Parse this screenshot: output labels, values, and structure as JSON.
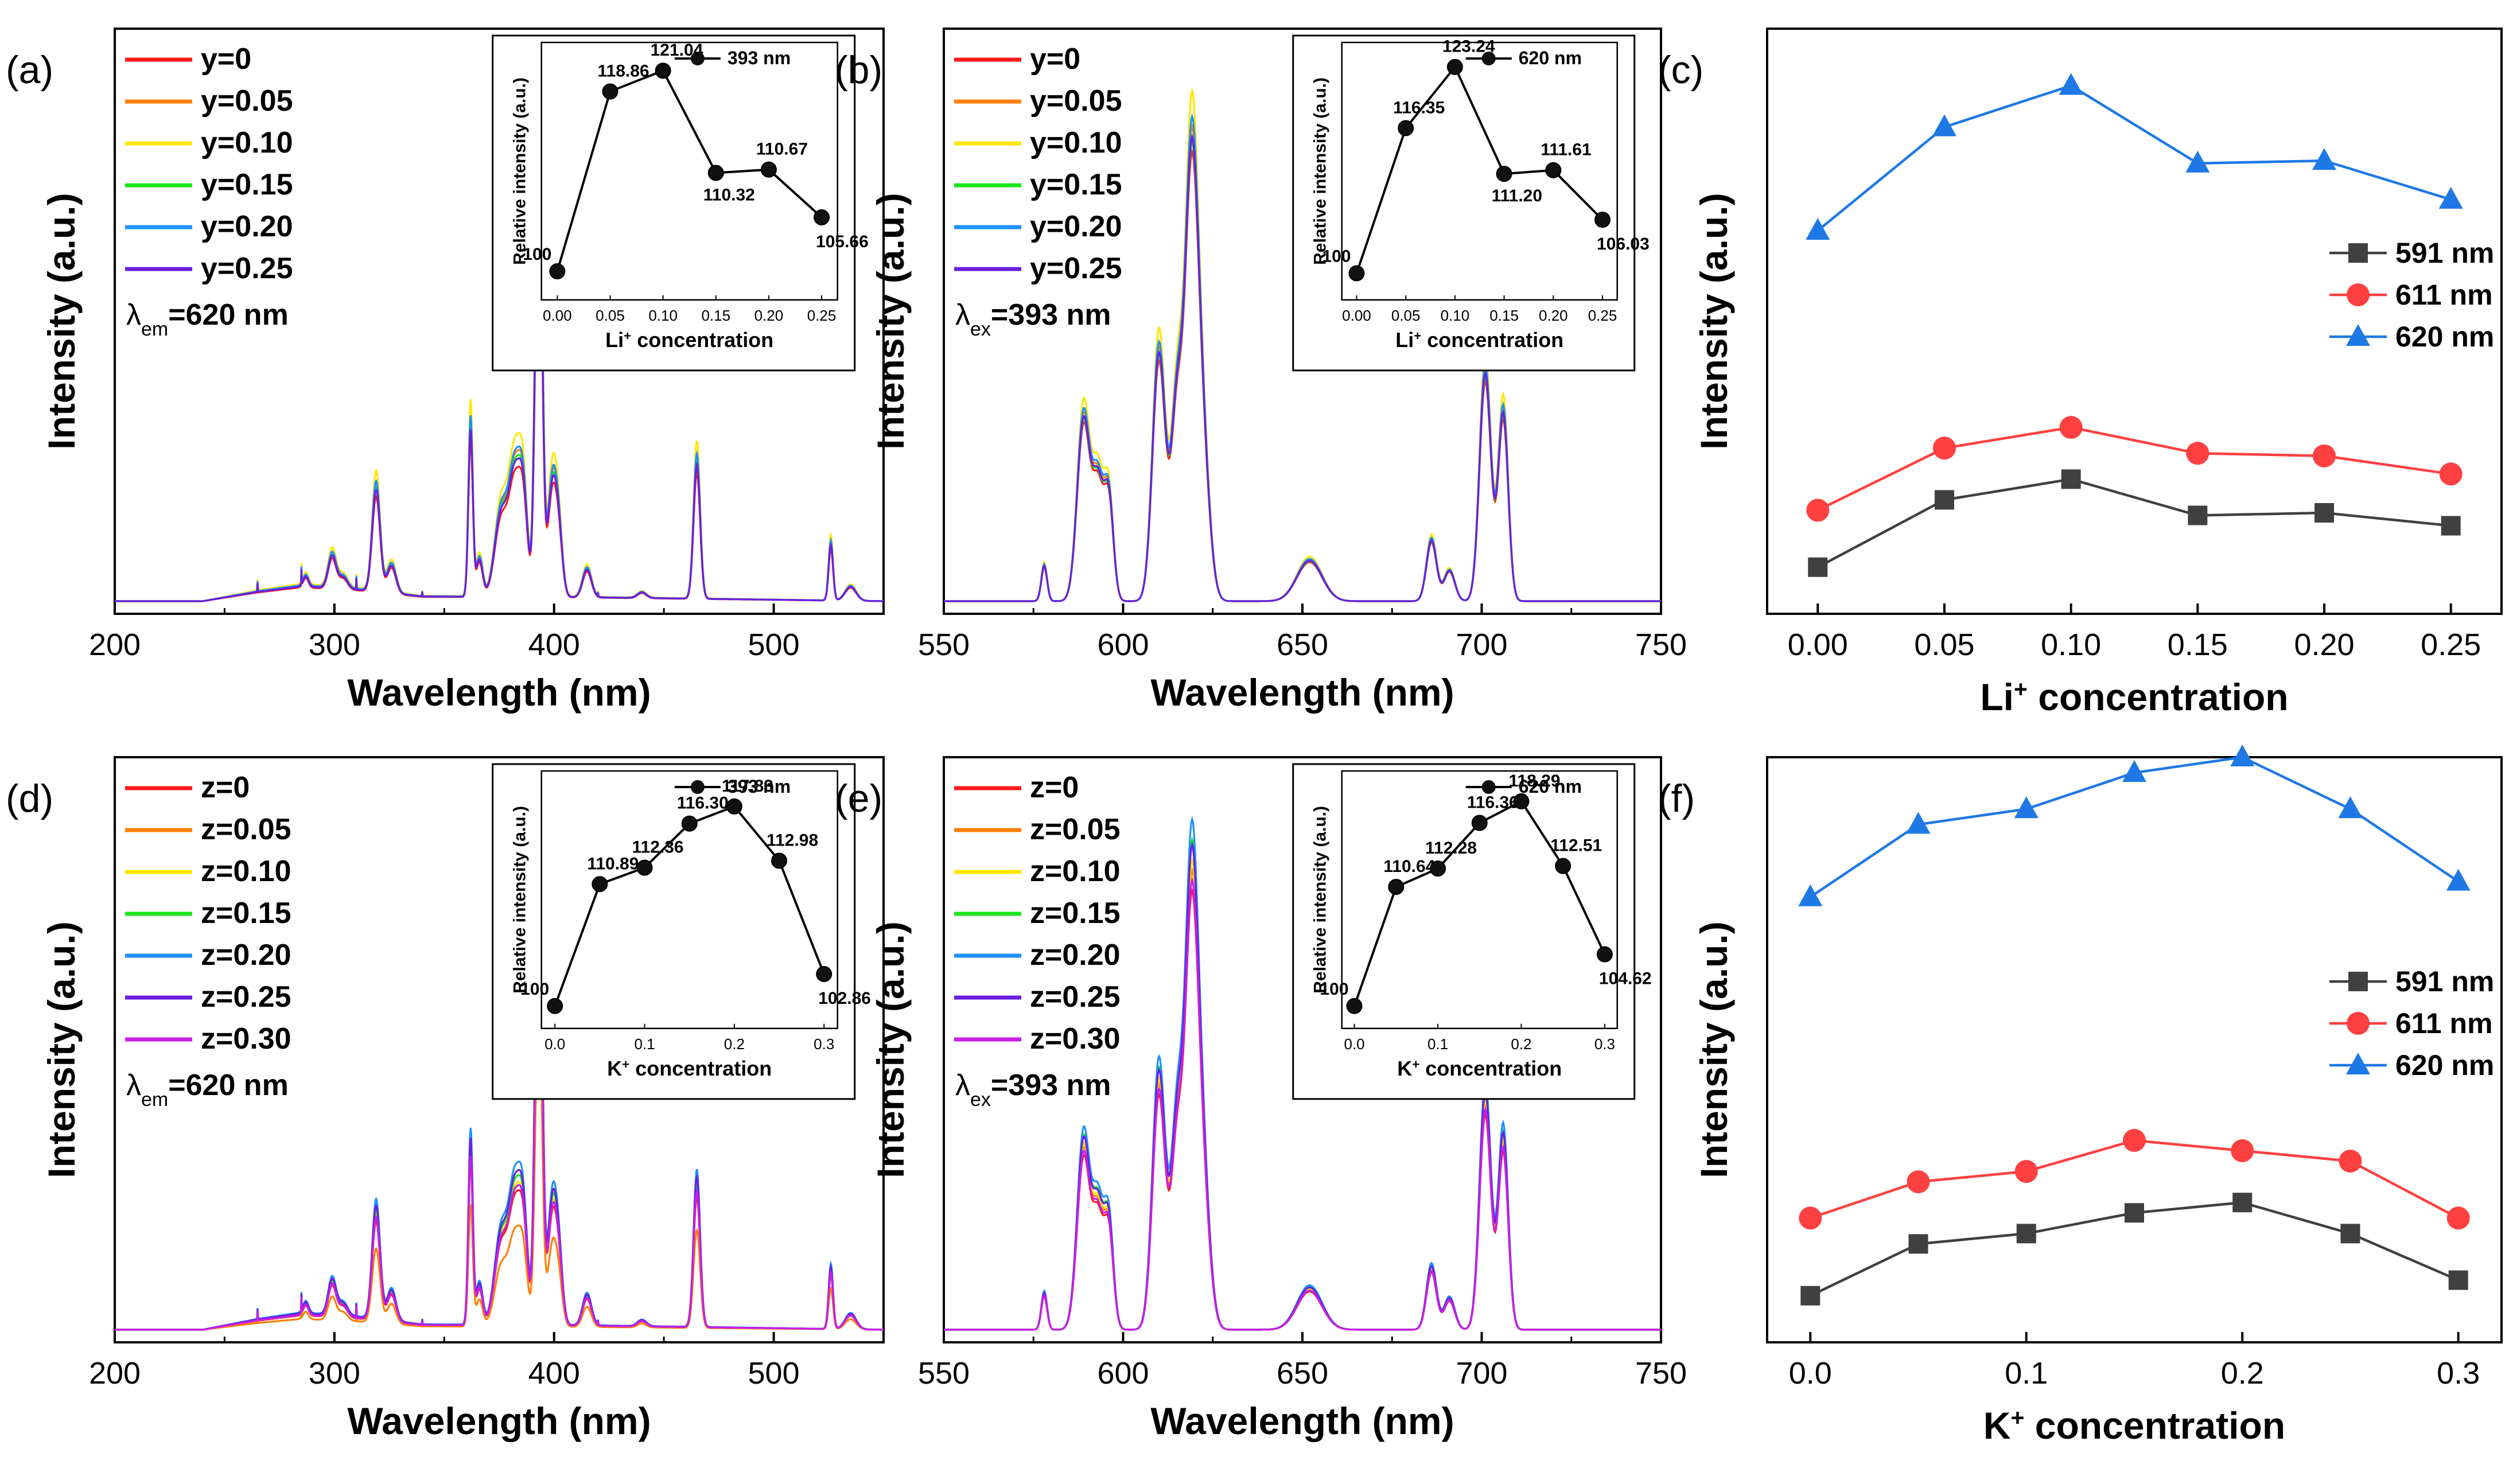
{
  "colors": {
    "y0": "#ff1a1a",
    "y05": "#ff7f00",
    "y10": "#ffe600",
    "y15": "#19e619",
    "y20": "#1e90ff",
    "y25": "#6a1fe0",
    "y30": "#c81ee6",
    "g591": "#404040",
    "g611": "#ff4040",
    "g620": "#1e78e6",
    "ink": "#000000"
  },
  "chart_data": [
    {
      "id": "a",
      "panel_label": "(a)",
      "type": "line",
      "title": "",
      "xlabel": "Wavelength (nm)",
      "ylabel": "Intensity (a.u.)",
      "xlim": [
        200,
        550
      ],
      "xticks": [
        200,
        300,
        400,
        500
      ],
      "annotation": {
        "symbol": "λ",
        "sub": "em",
        "text": "=620 nm"
      },
      "series": [
        {
          "name": "y=0",
          "color_key": "y0",
          "scale": 0.8
        },
        {
          "name": "y=0.05",
          "color_key": "y05",
          "scale": 0.9
        },
        {
          "name": "y=0.10",
          "color_key": "y10",
          "scale": 1.0
        },
        {
          "name": "y=0.15",
          "color_key": "y15",
          "scale": 0.87
        },
        {
          "name": "y=0.20",
          "color_key": "y20",
          "scale": 0.92
        },
        {
          "name": "y=0.25",
          "color_key": "y25",
          "scale": 0.85
        }
      ],
      "peaks": [
        [
          287,
          0.022,
          1.2
        ],
        [
          299,
          0.07,
          1.8
        ],
        [
          304,
          0.025,
          2
        ],
        [
          319,
          0.22,
          1.8
        ],
        [
          326,
          0.06,
          2
        ],
        [
          362,
          0.36,
          1.0
        ],
        [
          366,
          0.08,
          1.5
        ],
        [
          376,
          0.18,
          3
        ],
        [
          382,
          0.24,
          2.5
        ],
        [
          386,
          0.2,
          2
        ],
        [
          393,
          1.0,
          1.5
        ],
        [
          399,
          0.22,
          2
        ],
        [
          402,
          0.13,
          1.8
        ],
        [
          415,
          0.06,
          2
        ],
        [
          440,
          0.012,
          2
        ],
        [
          465,
          0.29,
          1.5
        ],
        [
          526,
          0.12,
          1.0
        ],
        [
          535,
          0.03,
          2.5
        ]
      ],
      "baseline": [
        [
          240,
          0
        ],
        [
          265,
          0.02
        ],
        [
          285,
          0.032
        ],
        [
          310,
          0.025
        ],
        [
          340,
          0.01
        ],
        [
          420,
          0.008
        ],
        [
          550,
          0
        ]
      ],
      "ymax_frac": 0.95,
      "inset": {
        "type": "line",
        "xlabel_prefix": "Li",
        "xlabel_suffix": " concentration",
        "ylabel": "Relative intensity (a.u.)",
        "legend": "393 nm",
        "x": [
          0,
          0.05,
          0.1,
          0.15,
          0.2,
          0.25
        ],
        "y": [
          100,
          118.86,
          121.04,
          110.32,
          110.67,
          105.66
        ],
        "labels": [
          "100",
          "118.86",
          "121.04",
          "110.32",
          "110.67",
          "105.66"
        ],
        "xlim": [
          -0.015,
          0.265
        ],
        "ylim": [
          97,
          124
        ],
        "xticks": [
          "0.00",
          "0.05",
          "0.10",
          "0.15",
          "0.20",
          "0.25"
        ]
      }
    },
    {
      "id": "b",
      "panel_label": "(b)",
      "type": "line",
      "title": "",
      "xlabel": "Wavelength (nm)",
      "ylabel": "Intensity (a.u.)",
      "xlim": [
        550,
        750
      ],
      "xticks": [
        550,
        600,
        650,
        700,
        750
      ],
      "annotation": {
        "symbol": "λ",
        "sub": "ex",
        "text": "=393 nm"
      },
      "series": [
        {
          "name": "y=0",
          "color_key": "y0",
          "scale": 0.88
        },
        {
          "name": "y=0.05",
          "color_key": "y05",
          "scale": 0.93
        },
        {
          "name": "y=0.10",
          "color_key": "y10",
          "scale": 1.0
        },
        {
          "name": "y=0.15",
          "color_key": "y15",
          "scale": 0.9
        },
        {
          "name": "y=0.20",
          "color_key": "y20",
          "scale": 0.95
        },
        {
          "name": "y=0.25",
          "color_key": "y25",
          "scale": 0.91
        }
      ],
      "peaks": [
        [
          578,
          0.07,
          0.8
        ],
        [
          589,
          0.36,
          1.8
        ],
        [
          593,
          0.22,
          1.5
        ],
        [
          596,
          0.2,
          1.3
        ],
        [
          610,
          0.49,
          1.8
        ],
        [
          615,
          0.37,
          1.6
        ],
        [
          619,
          0.8,
          1.8
        ],
        [
          622,
          0.3,
          2
        ],
        [
          652,
          0.08,
          3.5
        ],
        [
          686,
          0.12,
          1.4
        ],
        [
          691,
          0.06,
          1.5
        ],
        [
          701,
          0.45,
          1.6
        ],
        [
          706,
          0.37,
          1.4
        ]
      ],
      "baseline": [
        [
          550,
          0
        ],
        [
          750,
          0
        ]
      ],
      "ymax_frac": 0.97,
      "inset": {
        "type": "line",
        "xlabel_prefix": "Li",
        "xlabel_suffix": " concentration",
        "ylabel": "Relative intensity (a.u.)",
        "legend": "620 nm",
        "x": [
          0,
          0.05,
          0.1,
          0.15,
          0.2,
          0.25
        ],
        "y": [
          100,
          116.35,
          123.24,
          111.2,
          111.61,
          106.03
        ],
        "labels": [
          "100",
          "116.35",
          "123.24",
          "111.20",
          "111.61",
          "106.03"
        ],
        "xlim": [
          -0.015,
          0.265
        ],
        "ylim": [
          97,
          126
        ],
        "xticks": [
          "0.00",
          "0.05",
          "0.10",
          "0.15",
          "0.20",
          "0.25"
        ]
      }
    },
    {
      "id": "c",
      "panel_label": "(c)",
      "type": "line",
      "title": "",
      "xlabel_prefix": "Li",
      "xlabel_suffix": " concentration",
      "ylabel": "Intensity (a.u.)",
      "xlim": [
        -0.02,
        0.27
      ],
      "ylim": [
        0,
        1.05
      ],
      "xticks": [
        "0.00",
        "0.05",
        "0.10",
        "0.15",
        "0.20",
        "0.25"
      ],
      "x": [
        0,
        0.05,
        0.1,
        0.15,
        0.2,
        0.25
      ],
      "series": [
        {
          "name": "591 nm",
          "marker": "square",
          "color_key": "g591",
          "values": [
            0.09,
            0.22,
            0.26,
            0.19,
            0.195,
            0.17
          ]
        },
        {
          "name": "611 nm",
          "marker": "circle",
          "color_key": "g611",
          "values": [
            0.2,
            0.32,
            0.36,
            0.31,
            0.305,
            0.27
          ]
        },
        {
          "name": "620 nm",
          "marker": "triangle",
          "color_key": "g620",
          "values": [
            0.74,
            0.94,
            1.02,
            0.87,
            0.875,
            0.8
          ]
        }
      ],
      "legend_position": "middle-right"
    },
    {
      "id": "d",
      "panel_label": "(d)",
      "type": "line",
      "title": "",
      "xlabel": "Wavelength (nm)",
      "ylabel": "Intensity (a.u.)",
      "xlim": [
        200,
        550
      ],
      "xticks": [
        200,
        300,
        400,
        500
      ],
      "annotation": {
        "symbol": "λ",
        "sub": "em",
        "text": "=620 nm"
      },
      "series": [
        {
          "name": "z=0",
          "color_key": "y0",
          "scale": 0.83
        },
        {
          "name": "z=0.05",
          "color_key": "y05",
          "scale": 0.62
        },
        {
          "name": "z=0.10",
          "color_key": "y10",
          "scale": 0.88
        },
        {
          "name": "z=0.15",
          "color_key": "y15",
          "scale": 0.92
        },
        {
          "name": "z=0.20",
          "color_key": "y20",
          "scale": 1.0
        },
        {
          "name": "z=0.25",
          "color_key": "y25",
          "scale": 0.95
        },
        {
          "name": "z=0.30",
          "color_key": "y30",
          "scale": 0.86
        }
      ],
      "peaks": [
        [
          287,
          0.022,
          1.2
        ],
        [
          299,
          0.07,
          1.8
        ],
        [
          304,
          0.025,
          2
        ],
        [
          319,
          0.22,
          1.8
        ],
        [
          326,
          0.06,
          2
        ],
        [
          362,
          0.36,
          1.0
        ],
        [
          366,
          0.08,
          1.5
        ],
        [
          376,
          0.18,
          3
        ],
        [
          382,
          0.24,
          2.5
        ],
        [
          386,
          0.2,
          2
        ],
        [
          393,
          1.0,
          1.5
        ],
        [
          399,
          0.22,
          2
        ],
        [
          402,
          0.13,
          1.8
        ],
        [
          415,
          0.06,
          2
        ],
        [
          440,
          0.012,
          2
        ],
        [
          465,
          0.29,
          1.5
        ],
        [
          526,
          0.12,
          1.0
        ],
        [
          535,
          0.03,
          2.5
        ]
      ],
      "baseline": [
        [
          240,
          0
        ],
        [
          265,
          0.02
        ],
        [
          285,
          0.032
        ],
        [
          310,
          0.025
        ],
        [
          340,
          0.01
        ],
        [
          420,
          0.008
        ],
        [
          550,
          0
        ]
      ],
      "ymax_frac": 0.95,
      "inset": {
        "type": "line",
        "xlabel_prefix": "K",
        "xlabel_suffix": " concentration",
        "ylabel": "Relative intensity (a.u.)",
        "legend": "393 nm",
        "x": [
          0,
          0.05,
          0.1,
          0.15,
          0.2,
          0.25,
          0.3
        ],
        "y": [
          100,
          110.89,
          112.36,
          116.3,
          117.83,
          112.98,
          102.86
        ],
        "labels": [
          "100",
          "110.89",
          "112.36",
          "116.30",
          "117.83",
          "112.98",
          "102.86"
        ],
        "xlim": [
          -0.015,
          0.315
        ],
        "ylim": [
          98,
          121
        ],
        "xticks": [
          "0.0",
          "0.1",
          "0.2",
          "0.3"
        ]
      }
    },
    {
      "id": "e",
      "panel_label": "(e)",
      "type": "line",
      "title": "",
      "xlabel": "Wavelength (nm)",
      "ylabel": "Intensity (a.u.)",
      "xlim": [
        550,
        750
      ],
      "xticks": [
        550,
        600,
        650,
        700,
        750
      ],
      "annotation": {
        "symbol": "λ",
        "sub": "ex",
        "text": "=393 nm"
      },
      "series": [
        {
          "name": "z=0",
          "color_key": "y0",
          "scale": 0.86
        },
        {
          "name": "z=0.05",
          "color_key": "y05",
          "scale": 0.9
        },
        {
          "name": "z=0.10",
          "color_key": "y10",
          "scale": 0.92
        },
        {
          "name": "z=0.15",
          "color_key": "y15",
          "scale": 0.96
        },
        {
          "name": "z=0.20",
          "color_key": "y20",
          "scale": 1.0
        },
        {
          "name": "z=0.25",
          "color_key": "y25",
          "scale": 0.95
        },
        {
          "name": "z=0.30",
          "color_key": "y30",
          "scale": 0.88
        }
      ],
      "peaks": [
        [
          578,
          0.07,
          0.8
        ],
        [
          589,
          0.36,
          1.8
        ],
        [
          593,
          0.22,
          1.5
        ],
        [
          596,
          0.2,
          1.3
        ],
        [
          610,
          0.49,
          1.8
        ],
        [
          615,
          0.37,
          1.6
        ],
        [
          619,
          0.8,
          1.8
        ],
        [
          622,
          0.3,
          2
        ],
        [
          652,
          0.08,
          3.5
        ],
        [
          686,
          0.12,
          1.4
        ],
        [
          691,
          0.06,
          1.5
        ],
        [
          701,
          0.45,
          1.6
        ],
        [
          706,
          0.37,
          1.4
        ]
      ],
      "baseline": [
        [
          550,
          0
        ],
        [
          750,
          0
        ]
      ],
      "ymax_frac": 0.97,
      "inset": {
        "type": "line",
        "xlabel_prefix": "K",
        "xlabel_suffix": " concentration",
        "ylabel": "Relative intensity (a.u.)",
        "legend": "620 nm",
        "x": [
          0,
          0.05,
          0.1,
          0.15,
          0.2,
          0.25,
          0.3
        ],
        "y": [
          100,
          110.64,
          112.28,
          116.36,
          118.29,
          112.51,
          104.62
        ],
        "labels": [
          "100",
          "110.64",
          "112.28",
          "116.36",
          "118.29",
          "112.51",
          "104.62"
        ],
        "xlim": [
          -0.015,
          0.315
        ],
        "ylim": [
          98,
          121
        ],
        "xticks": [
          "0.0",
          "0.1",
          "0.2",
          "0.3"
        ]
      }
    },
    {
      "id": "f",
      "panel_label": "(f)",
      "type": "line",
      "title": "",
      "xlabel_prefix": "K",
      "xlabel_suffix": " concentration",
      "ylabel": "Intensity (a.u.)",
      "xlim": [
        -0.02,
        0.32
      ],
      "ylim": [
        0,
        1.05
      ],
      "xticks": [
        "0.0",
        "0.1",
        "0.2",
        "0.3"
      ],
      "x": [
        0,
        0.05,
        0.1,
        0.15,
        0.2,
        0.25,
        0.3
      ],
      "series": [
        {
          "name": "591 nm",
          "marker": "square",
          "color_key": "g591",
          "values": [
            0.09,
            0.19,
            0.21,
            0.25,
            0.27,
            0.21,
            0.12
          ]
        },
        {
          "name": "611 nm",
          "marker": "circle",
          "color_key": "g611",
          "values": [
            0.24,
            0.31,
            0.33,
            0.39,
            0.37,
            0.35,
            0.24
          ]
        },
        {
          "name": "620 nm",
          "marker": "triangle",
          "color_key": "g620",
          "values": [
            0.86,
            1.0,
            1.03,
            1.1,
            1.13,
            1.03,
            0.89
          ]
        }
      ],
      "legend_position": "middle-right"
    }
  ]
}
